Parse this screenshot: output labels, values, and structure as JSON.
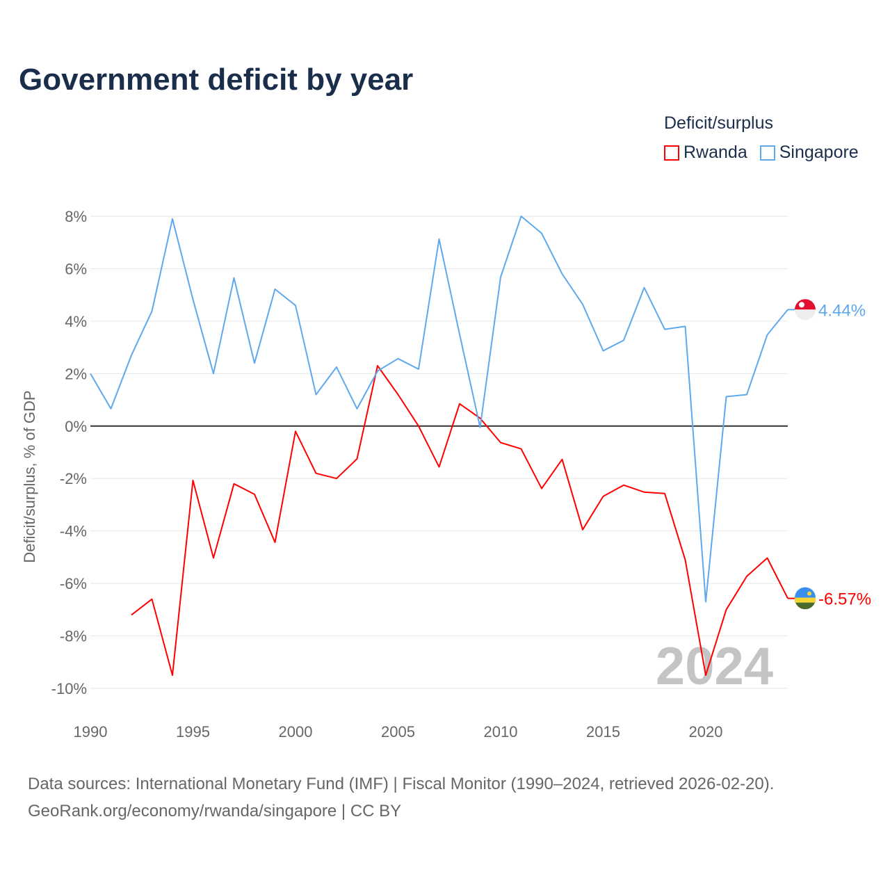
{
  "chart_data": {
    "type": "line",
    "title": "Government deficit by year",
    "legend_title": "Deficit/surplus",
    "ylabel": "Deficit/surplus, % of GDP",
    "xlabel": "",
    "xlim": [
      1990,
      2024
    ],
    "ylim": [
      -10,
      8
    ],
    "x_ticks": [
      1990,
      1995,
      2000,
      2005,
      2010,
      2015,
      2020
    ],
    "y_ticks": [
      8,
      6,
      4,
      2,
      0,
      -2,
      -4,
      -6,
      -8,
      -10
    ],
    "y_tick_labels": [
      "8%",
      "6%",
      "4%",
      "2%",
      "0%",
      "-2%",
      "-4%",
      "-6%",
      "-8%",
      "-10%"
    ],
    "grid": true,
    "legend_placement": "top-right",
    "watermark_year": "2024",
    "series": [
      {
        "name": "Rwanda",
        "color": "#ff0000",
        "end_label": "-6.57%",
        "x": [
          1992,
          1993,
          1994,
          1995,
          1996,
          1997,
          1998,
          1999,
          2000,
          2001,
          2002,
          2003,
          2004,
          2005,
          2006,
          2007,
          2008,
          2009,
          2010,
          2011,
          2012,
          2013,
          2014,
          2015,
          2016,
          2017,
          2018,
          2019,
          2020,
          2021,
          2022,
          2023,
          2024
        ],
        "values": [
          -7.2,
          -6.6,
          -9.5,
          -2.07,
          -5.03,
          -2.2,
          -2.6,
          -4.43,
          -0.2,
          -1.8,
          -2.0,
          -1.25,
          2.3,
          1.2,
          0.0,
          -1.56,
          0.85,
          0.3,
          -0.63,
          -0.87,
          -2.38,
          -1.27,
          -3.95,
          -2.68,
          -2.25,
          -2.52,
          -2.57,
          -5.1,
          -9.5,
          -7.0,
          -5.73,
          -5.03,
          -6.57
        ]
      },
      {
        "name": "Singapore",
        "color": "#5ea8ee",
        "end_label": "4.44%",
        "x": [
          1990,
          1991,
          1992,
          1993,
          1994,
          1995,
          1996,
          1997,
          1998,
          1999,
          2000,
          2001,
          2002,
          2003,
          2004,
          2005,
          2006,
          2007,
          2008,
          2009,
          2010,
          2011,
          2012,
          2013,
          2014,
          2015,
          2016,
          2017,
          2018,
          2019,
          2020,
          2021,
          2022,
          2023,
          2024
        ],
        "values": [
          2.0,
          0.66,
          2.7,
          4.38,
          7.9,
          4.83,
          2.0,
          5.65,
          2.4,
          5.22,
          4.6,
          1.2,
          2.25,
          0.66,
          2.1,
          2.57,
          2.17,
          7.13,
          3.5,
          -0.05,
          5.68,
          8.0,
          7.35,
          5.8,
          4.64,
          2.87,
          3.27,
          5.28,
          3.69,
          3.8,
          -6.7,
          1.12,
          1.2,
          3.48,
          4.44
        ]
      }
    ]
  },
  "footer": {
    "line1": "Data sources: International Monetary Fund (IMF) | Fiscal Monitor (1990–2024, retrieved 2026-02-20).",
    "line2": "GeoRank.org/economy/rwanda/singapore | CC BY"
  }
}
